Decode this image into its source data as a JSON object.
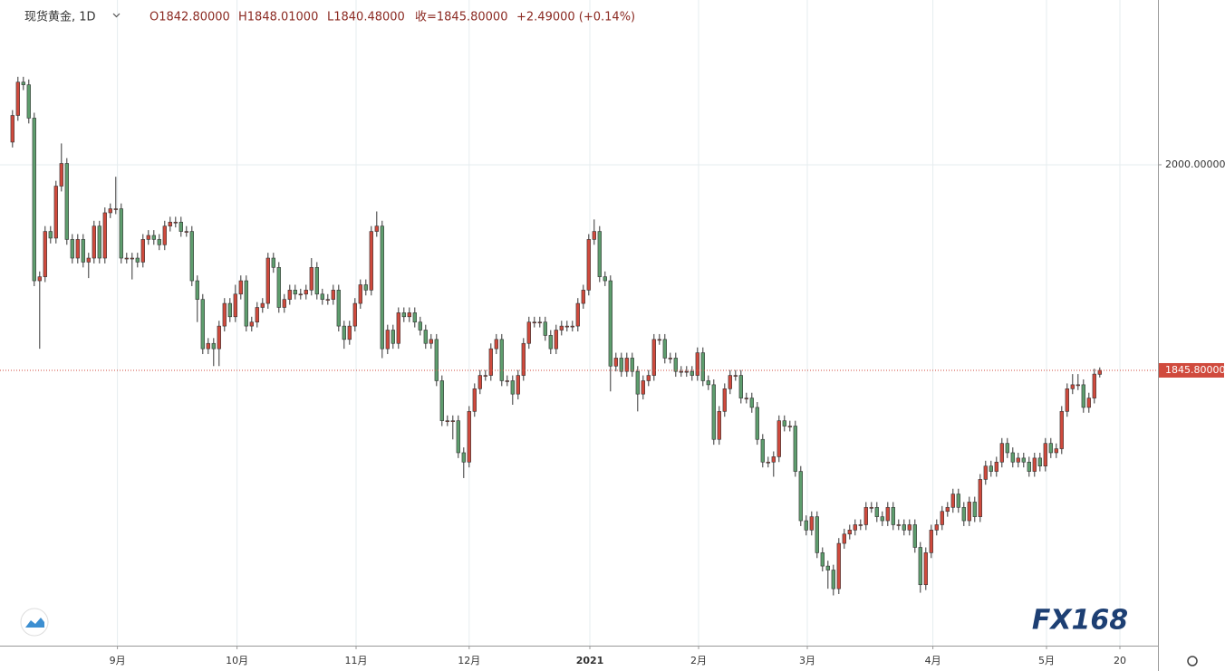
{
  "chart_data": {
    "type": "candlestick",
    "ohlc_labels": {
      "symbol": "现货黄金, 1D",
      "open": "O1842.80000",
      "high": "H1848.01000",
      "low": "L1840.48000",
      "close": "收=1845.80000",
      "change": "+2.49000 (+0.14%)"
    },
    "watermark": "FX168",
    "up_color": "#d04a3d",
    "down_color": "#5e9e6e",
    "grid": true,
    "xlim": [
      -2.3,
      210.7
    ],
    "xticks": [
      {
        "value": 19.3,
        "label": "9月"
      },
      {
        "value": 41.3,
        "label": "10月"
      },
      {
        "value": 63.2,
        "label": "11月"
      },
      {
        "value": 84,
        "label": "12月"
      },
      {
        "value": 106.2,
        "label": "2021"
      },
      {
        "value": 126.2,
        "label": "2月"
      },
      {
        "value": 146.2,
        "label": "3月"
      },
      {
        "value": 169.3,
        "label": "4月"
      },
      {
        "value": 190.2,
        "label": "5月"
      },
      {
        "value": 203.7,
        "label": "20"
      }
    ],
    "ylim": [
      1639.3,
      2123.6
    ],
    "yticks": [
      {
        "value": 2000,
        "label": "2000.00000"
      }
    ],
    "last_price": {
      "value": 1845.8,
      "label": "1845.80000"
    },
    "open": [
      2017,
      2037,
      2062,
      2060,
      2035,
      1913,
      1916,
      1950,
      1945,
      1984,
      2001,
      1944,
      1930,
      1944,
      1927,
      1930,
      1954,
      1930,
      1964,
      1967,
      1967,
      1930,
      1930,
      1930,
      1927,
      1944,
      1947,
      1944,
      1940,
      1954,
      1957,
      1957,
      1950,
      1950,
      1913,
      1899,
      1862,
      1866,
      1862,
      1879,
      1896,
      1886,
      1903,
      1913,
      1879,
      1882,
      1893,
      1896,
      1930,
      1923,
      1893,
      1899,
      1906,
      1903,
      1903,
      1906,
      1923,
      1903,
      1899,
      1899,
      1906,
      1879,
      1869,
      1879,
      1896,
      1910,
      1906,
      1950,
      1954,
      1862,
      1876,
      1866,
      1889,
      1886,
      1889,
      1882,
      1876,
      1866,
      1869,
      1838,
      1808,
      1808,
      1808,
      1784,
      1777,
      1815,
      1832,
      1842,
      1842,
      1862,
      1869,
      1838,
      1838,
      1828,
      1842,
      1866,
      1882,
      1882,
      1882,
      1872,
      1862,
      1876,
      1879,
      1879,
      1879,
      1896,
      1906,
      1944,
      1950,
      1916,
      1913,
      1849,
      1855,
      1845,
      1855,
      1845,
      1828,
      1838,
      1842,
      1869,
      1869,
      1855,
      1855,
      1845,
      1845,
      1845,
      1842,
      1859,
      1838,
      1835,
      1794,
      1815,
      1832,
      1842,
      1842,
      1825,
      1825,
      1818,
      1794,
      1777,
      1777,
      1781,
      1808,
      1804,
      1804,
      1770,
      1733,
      1726,
      1736,
      1709,
      1699,
      1696,
      1682,
      1716,
      1723,
      1726,
      1730,
      1730,
      1743,
      1743,
      1736,
      1733,
      1743,
      1730,
      1730,
      1726,
      1730,
      1713,
      1685,
      1709,
      1726,
      1730,
      1740,
      1743,
      1753,
      1743,
      1733,
      1747,
      1736,
      1764,
      1774,
      1770,
      1777,
      1791,
      1784,
      1777,
      1780,
      1777,
      1770,
      1780,
      1774,
      1791,
      1784,
      1787,
      1815,
      1832,
      1835,
      1835,
      1818,
      1825,
      1842.8
    ],
    "high": [
      2041,
      2066,
      2066,
      2064,
      2039,
      1920,
      1954,
      1954,
      1988,
      2016,
      2005,
      1948,
      1948,
      1948,
      1934,
      1958,
      1958,
      1968,
      1971,
      1991,
      1971,
      1934,
      1934,
      1934,
      1948,
      1951,
      1951,
      1948,
      1958,
      1961,
      1961,
      1961,
      1954,
      1954,
      1917,
      1903,
      1870,
      1870,
      1883,
      1900,
      1900,
      1910,
      1917,
      1917,
      1886,
      1897,
      1900,
      1934,
      1934,
      1927,
      1903,
      1910,
      1910,
      1907,
      1910,
      1930,
      1927,
      1907,
      1903,
      1910,
      1910,
      1883,
      1883,
      1900,
      1914,
      1914,
      1954,
      1965,
      1958,
      1880,
      1880,
      1893,
      1893,
      1893,
      1893,
      1886,
      1880,
      1873,
      1873,
      1842,
      1812,
      1812,
      1812,
      1788,
      1819,
      1836,
      1846,
      1846,
      1866,
      1873,
      1873,
      1842,
      1842,
      1846,
      1870,
      1886,
      1886,
      1886,
      1886,
      1876,
      1880,
      1883,
      1883,
      1883,
      1900,
      1910,
      1948,
      1959,
      1954,
      1920,
      1917,
      1859,
      1859,
      1859,
      1859,
      1849,
      1842,
      1846,
      1873,
      1873,
      1873,
      1859,
      1859,
      1849,
      1849,
      1849,
      1863,
      1863,
      1842,
      1839,
      1819,
      1836,
      1846,
      1846,
      1846,
      1829,
      1829,
      1822,
      1798,
      1781,
      1785,
      1812,
      1812,
      1808,
      1808,
      1774,
      1737,
      1740,
      1740,
      1713,
      1703,
      1700,
      1720,
      1727,
      1730,
      1734,
      1734,
      1747,
      1747,
      1747,
      1740,
      1747,
      1747,
      1734,
      1734,
      1734,
      1734,
      1717,
      1713,
      1730,
      1734,
      1744,
      1747,
      1757,
      1757,
      1747,
      1751,
      1751,
      1768,
      1778,
      1778,
      1781,
      1795,
      1795,
      1788,
      1784,
      1784,
      1781,
      1784,
      1784,
      1795,
      1795,
      1791,
      1819,
      1836,
      1843,
      1843,
      1839,
      1829,
      1847,
      1848.01
    ],
    "low": [
      2013,
      2033,
      2056,
      2031,
      1909,
      1862,
      1912,
      1941,
      1941,
      1980,
      1940,
      1926,
      1926,
      1923,
      1915,
      1926,
      1926,
      1926,
      1960,
      1963,
      1926,
      1926,
      1914,
      1923,
      1923,
      1940,
      1940,
      1936,
      1936,
      1950,
      1953,
      1946,
      1946,
      1909,
      1882,
      1858,
      1858,
      1849,
      1849,
      1875,
      1882,
      1882,
      1899,
      1875,
      1875,
      1878,
      1889,
      1892,
      1919,
      1889,
      1889,
      1895,
      1899,
      1899,
      1899,
      1902,
      1899,
      1895,
      1895,
      1895,
      1875,
      1862,
      1865,
      1875,
      1892,
      1902,
      1902,
      1946,
      1855,
      1858,
      1862,
      1862,
      1882,
      1882,
      1878,
      1872,
      1862,
      1862,
      1834,
      1804,
      1804,
      1794,
      1780,
      1765,
      1773,
      1811,
      1828,
      1838,
      1838,
      1858,
      1834,
      1834,
      1820,
      1824,
      1838,
      1862,
      1878,
      1878,
      1868,
      1858,
      1858,
      1872,
      1875,
      1875,
      1875,
      1892,
      1902,
      1940,
      1912,
      1909,
      1830,
      1845,
      1841,
      1841,
      1841,
      1815,
      1824,
      1834,
      1838,
      1865,
      1851,
      1851,
      1841,
      1841,
      1841,
      1838,
      1838,
      1834,
      1831,
      1790,
      1790,
      1811,
      1828,
      1838,
      1821,
      1821,
      1814,
      1790,
      1773,
      1773,
      1766,
      1777,
      1800,
      1800,
      1766,
      1729,
      1722,
      1722,
      1705,
      1695,
      1682,
      1677,
      1678,
      1712,
      1719,
      1722,
      1726,
      1726,
      1739,
      1732,
      1729,
      1729,
      1726,
      1726,
      1722,
      1722,
      1709,
      1679,
      1681,
      1705,
      1722,
      1726,
      1736,
      1739,
      1739,
      1729,
      1729,
      1732,
      1732,
      1760,
      1766,
      1766,
      1773,
      1780,
      1773,
      1773,
      1773,
      1766,
      1766,
      1770,
      1770,
      1780,
      1780,
      1783,
      1811,
      1828,
      1831,
      1814,
      1814,
      1821,
      1840.48
    ],
    "close": [
      2037,
      2062,
      2060,
      2035,
      1913,
      1916,
      1950,
      1945,
      1984,
      2001,
      1944,
      1930,
      1944,
      1927,
      1930,
      1954,
      1930,
      1964,
      1967,
      1967,
      1930,
      1930,
      1930,
      1927,
      1944,
      1947,
      1944,
      1940,
      1954,
      1957,
      1957,
      1950,
      1950,
      1913,
      1899,
      1862,
      1866,
      1862,
      1879,
      1896,
      1886,
      1903,
      1913,
      1879,
      1882,
      1893,
      1896,
      1930,
      1923,
      1893,
      1899,
      1906,
      1903,
      1903,
      1906,
      1923,
      1903,
      1899,
      1899,
      1906,
      1879,
      1869,
      1879,
      1896,
      1910,
      1906,
      1950,
      1954,
      1862,
      1876,
      1866,
      1889,
      1886,
      1889,
      1882,
      1876,
      1866,
      1869,
      1838,
      1808,
      1808,
      1808,
      1784,
      1777,
      1815,
      1832,
      1842,
      1842,
      1862,
      1869,
      1838,
      1838,
      1828,
      1842,
      1866,
      1882,
      1882,
      1882,
      1872,
      1862,
      1876,
      1879,
      1879,
      1879,
      1896,
      1906,
      1944,
      1950,
      1916,
      1913,
      1849,
      1855,
      1845,
      1855,
      1845,
      1828,
      1838,
      1842,
      1869,
      1869,
      1855,
      1855,
      1845,
      1845,
      1845,
      1842,
      1859,
      1838,
      1835,
      1794,
      1815,
      1832,
      1842,
      1842,
      1825,
      1825,
      1818,
      1794,
      1777,
      1777,
      1781,
      1808,
      1804,
      1804,
      1770,
      1733,
      1726,
      1736,
      1709,
      1699,
      1696,
      1682,
      1716,
      1723,
      1726,
      1730,
      1730,
      1743,
      1743,
      1736,
      1733,
      1743,
      1730,
      1730,
      1726,
      1730,
      1713,
      1685,
      1709,
      1726,
      1730,
      1740,
      1743,
      1753,
      1743,
      1733,
      1747,
      1736,
      1764,
      1774,
      1770,
      1777,
      1791,
      1784,
      1777,
      1780,
      1777,
      1770,
      1780,
      1774,
      1791,
      1784,
      1787,
      1815,
      1832,
      1835,
      1835,
      1818,
      1825,
      1843,
      1845.8
    ]
  }
}
